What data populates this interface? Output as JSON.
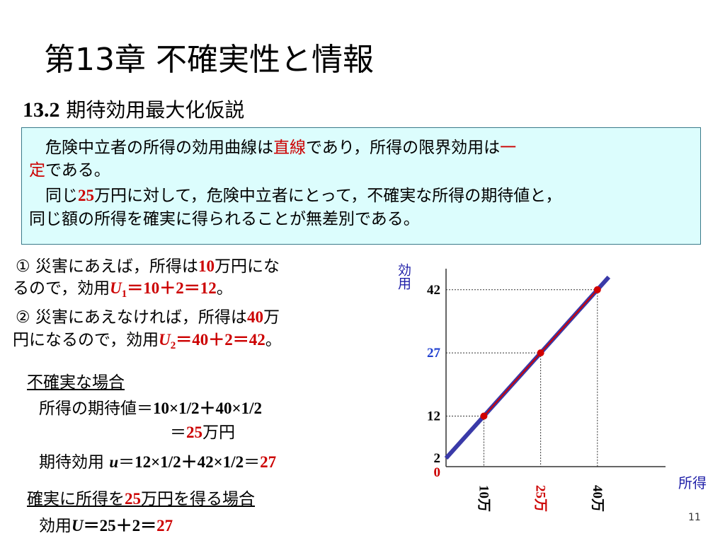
{
  "title": "第13章 不確実性と情報",
  "subtitle": [
    {
      "t": "13.2",
      "bold": true
    },
    {
      "t": " 期待効用最大化仮説"
    }
  ],
  "box": {
    "lines": [
      {
        "runs": [
          {
            "t": "　危険中立者の所得の効用曲線は"
          },
          {
            "t": "直線",
            "color": "#cc0000"
          },
          {
            "t": "であり，所得の限界効用は"
          },
          {
            "t": "一",
            "color": "#cc0000"
          }
        ]
      },
      {
        "runs": [
          {
            "t": "定",
            "color": "#cc0000"
          },
          {
            "t": "である。"
          }
        ]
      },
      {
        "runs": [
          {
            "t": "　同じ"
          },
          {
            "t": "25",
            "color": "#cc0000",
            "bold": true
          },
          {
            "t": "万円に対して，危険中立者にとって，不確実な所得の期待値と，"
          }
        ]
      },
      {
        "runs": [
          {
            "t": "同じ額の所得を確実に得られることが無差別である。"
          }
        ]
      }
    ]
  },
  "left": {
    "lines": [
      {
        "runs": [
          {
            "t": "①  災害にあえば，所得は"
          },
          {
            "t": "10",
            "color": "#cc0000",
            "bold": true
          },
          {
            "t": "万円にな"
          }
        ]
      },
      {
        "runs": [
          {
            "t": "るので，効用"
          },
          {
            "t": "U",
            "color": "#cc0000",
            "bold": true,
            "italic": true
          },
          {
            "t": "1",
            "color": "#cc0000",
            "bold": true,
            "sub": true
          },
          {
            "t": "＝10＋2＝12",
            "color": "#cc0000",
            "bold": true
          },
          {
            "t": "。"
          }
        ]
      },
      {
        "runs": [
          {
            "t": "②  災害にあえなければ，所得は"
          },
          {
            "t": "40",
            "color": "#cc0000",
            "bold": true
          },
          {
            "t": "万"
          }
        ]
      },
      {
        "runs": [
          {
            "t": "円になるので，効用"
          },
          {
            "t": "U",
            "color": "#cc0000",
            "bold": true,
            "italic": true
          },
          {
            "t": "2",
            "color": "#cc0000",
            "bold": true,
            "sub": true
          },
          {
            "t": "＝40＋2＝42",
            "color": "#cc0000",
            "bold": true
          },
          {
            "t": "。"
          }
        ]
      },
      {
        "runs": [
          {
            "t": "不確実な場合"
          }
        ],
        "underline": true
      },
      {
        "runs": [
          {
            "t": "所得の期待値＝"
          },
          {
            "t": "10×1/2＋40×1/2",
            "bold": true
          }
        ]
      },
      {
        "runs": [
          {
            "t": "＝"
          },
          {
            "t": "25",
            "color": "#cc0000",
            "bold": true
          },
          {
            "t": "万円"
          }
        ]
      },
      {
        "runs": [
          {
            "t": "期待効用 "
          },
          {
            "t": "u",
            "bold": true,
            "italic": true
          },
          {
            "t": "＝"
          },
          {
            "t": "12×1/2＋42×1/2",
            "bold": true
          },
          {
            "t": "＝"
          },
          {
            "t": "27",
            "color": "#cc0000",
            "bold": true
          }
        ]
      },
      {
        "runs": [
          {
            "t": "確実に所得を"
          },
          {
            "t": "25",
            "color": "#cc0000",
            "bold": true
          },
          {
            "t": "万円を得る場合"
          }
        ],
        "underline": true
      },
      {
        "runs": [
          {
            "t": "効用"
          },
          {
            "t": "U",
            "bold": true,
            "italic": true
          },
          {
            "t": "＝25＋2＝",
            "bold": true
          },
          {
            "t": "27",
            "color": "#cc0000",
            "bold": true
          }
        ]
      }
    ]
  },
  "chart_data": {
    "type": "line",
    "y_label": "効用",
    "x_label": "所得",
    "x": [
      10,
      25,
      40
    ],
    "series": [
      {
        "color": "#d00000",
        "values": [
          12,
          27,
          42
        ]
      }
    ],
    "line": {
      "color": "#3a3aa8",
      "x": [
        0,
        43
      ],
      "values": [
        2,
        45
      ]
    },
    "xlim": [
      0,
      58
    ],
    "ylim": [
      0,
      47
    ],
    "xticks": [
      {
        "value": 10,
        "label": "10万"
      },
      {
        "value": 25,
        "label": "25万"
      },
      {
        "value": 40,
        "label": "40万"
      }
    ],
    "xtick_colors": [
      "#000000",
      "#cc0000",
      "#000000"
    ],
    "yticks": [
      0,
      2,
      12,
      27,
      42
    ],
    "ytick_colors": [
      "#cc0000",
      "#000000",
      "#000000",
      "#1f3fd0",
      "#000000"
    ]
  },
  "page_number": "11"
}
